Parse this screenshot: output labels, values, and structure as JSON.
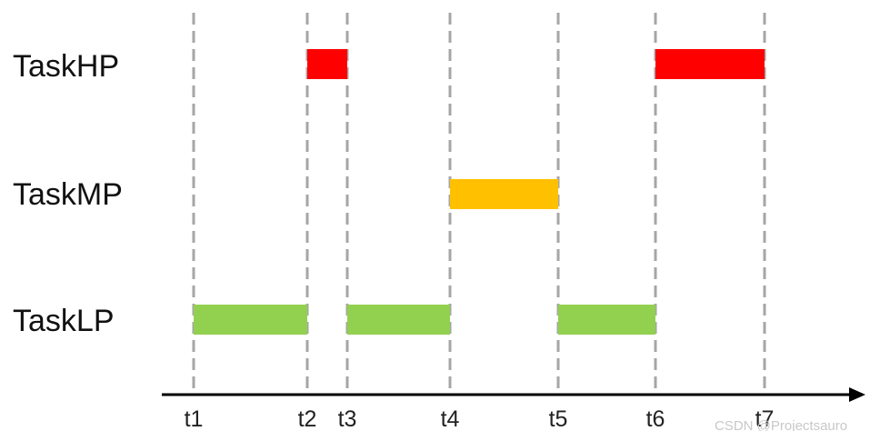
{
  "diagram": {
    "tasks": [
      {
        "id": "hp",
        "label": "TaskHP"
      },
      {
        "id": "mp",
        "label": "TaskMP"
      },
      {
        "id": "lp",
        "label": "TaskLP"
      }
    ],
    "time_points": [
      "t1",
      "t2",
      "t3",
      "t4",
      "t5",
      "t6",
      "t7"
    ],
    "segments": [
      {
        "task": "hp",
        "start": "t2",
        "end": "t3",
        "color": "#ff0000"
      },
      {
        "task": "hp",
        "start": "t6",
        "end": "t7",
        "color": "#ff0000"
      },
      {
        "task": "mp",
        "start": "t4",
        "end": "t5",
        "color": "#ffc000"
      },
      {
        "task": "lp",
        "start": "t1",
        "end": "t2",
        "color": "#92d050"
      },
      {
        "task": "lp",
        "start": "t3",
        "end": "t4",
        "color": "#92d050"
      },
      {
        "task": "lp",
        "start": "t5",
        "end": "t6",
        "color": "#92d050"
      }
    ],
    "colors": {
      "high_priority": "#ff0000",
      "medium_priority": "#ffc000",
      "low_priority": "#92d050",
      "gridline": "#a6a6a6",
      "axis": "#000000"
    },
    "watermark": "CSDN @Projectsauro"
  }
}
